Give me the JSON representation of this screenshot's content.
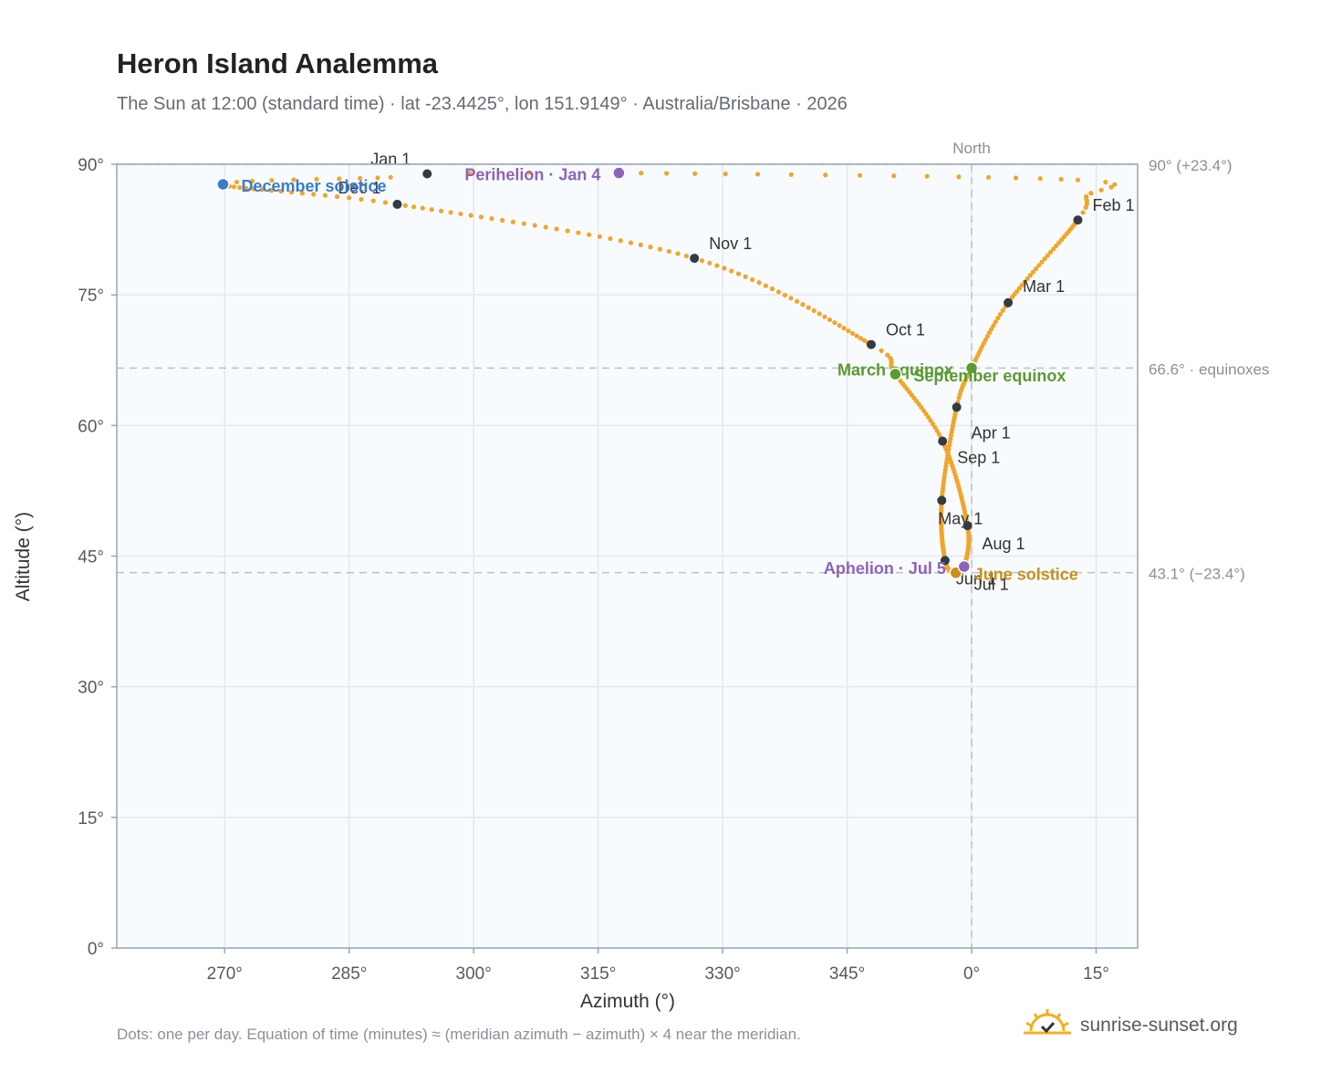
{
  "header": {
    "title": "Heron Island Analemma",
    "subtitle": "The Sun at 12:00 (standard time) · lat -23.4425°, lon 151.9149° · Australia/Brisbane · 2026"
  },
  "footer": {
    "note": "Dots: one per day. Equation of time (minutes) ≈ (meridian azimuth − azimuth) × 4 near the meridian.",
    "brand": "sunrise-sunset.org"
  },
  "colors": {
    "path": "#f0a62a",
    "month_marker": "#353b45",
    "december_solstice": "#3b7bc8",
    "june_solstice": "#c8901a",
    "equinox": "#5a9a32",
    "apsis": "#8e63b8",
    "plot_background": "#f8fbfd",
    "grid": "#e3e8ee",
    "reference_line": "#b7c4cc"
  },
  "chart_data": {
    "type": "scatter",
    "title": "Heron Island Analemma",
    "xlabel": "Azimuth (°)",
    "ylabel": "Altitude (°)",
    "xlim": [
      257,
      20
    ],
    "ylim": [
      0,
      90
    ],
    "x_ticks": [
      270,
      285,
      300,
      315,
      330,
      345,
      0,
      15
    ],
    "x_tick_labels": [
      "270°",
      "285°",
      "300°",
      "315°",
      "330°",
      "345°",
      "0°",
      "15°"
    ],
    "y_ticks": [
      0,
      15,
      30,
      45,
      60,
      75,
      90
    ],
    "y_tick_labels": [
      "0°",
      "15°",
      "30°",
      "45°",
      "60°",
      "75°",
      "90°"
    ],
    "grid": true,
    "reference_lines": [
      {
        "axis": "x",
        "value": 0,
        "label": "North"
      },
      {
        "axis": "y",
        "value": 90,
        "label": "90° (+23.4°)"
      },
      {
        "axis": "y",
        "value": 66.6,
        "label": "66.6° · equinoxes"
      },
      {
        "axis": "y",
        "value": 43.1,
        "label": "43.1° (−23.4°)"
      }
    ],
    "path_keypoints": [
      {
        "doy": 1,
        "az": 294.4,
        "alt": 88.9
      },
      {
        "doy": 4,
        "az": 317.5,
        "alt": 89.0
      },
      {
        "doy": 20,
        "az": 12.8,
        "alt": 88.2
      },
      {
        "doy": 26,
        "az": 13.8,
        "alt": 86.3
      },
      {
        "doy": 32,
        "az": 12.8,
        "alt": 83.6
      },
      {
        "doy": 60,
        "az": 4.4,
        "alt": 74.1
      },
      {
        "doy": 79,
        "az": 0.0,
        "alt": 66.6
      },
      {
        "doy": 91,
        "az": -1.8,
        "alt": 62.1
      },
      {
        "doy": 121,
        "az": -3.6,
        "alt": 51.4
      },
      {
        "doy": 152,
        "az": -3.2,
        "alt": 44.5
      },
      {
        "doy": 172,
        "az": -1.9,
        "alt": 43.1
      },
      {
        "doy": 186,
        "az": -0.9,
        "alt": 43.8
      },
      {
        "doy": 213,
        "az": -0.5,
        "alt": 48.5
      },
      {
        "doy": 244,
        "az": -3.5,
        "alt": 58.2
      },
      {
        "doy": 266,
        "az": 350.8,
        "alt": 65.9
      },
      {
        "doy": 274,
        "az": 347.9,
        "alt": 69.3
      },
      {
        "doy": 305,
        "az": 326.6,
        "alt": 79.2
      },
      {
        "doy": 335,
        "az": 290.8,
        "alt": 85.4
      },
      {
        "doy": 355,
        "az": 269.8,
        "alt": 87.7
      },
      {
        "doy": 365,
        "az": 290.0,
        "alt": 88.5
      }
    ],
    "month_markers": [
      {
        "label": "Jan 1",
        "az": 294.4,
        "alt": 88.9
      },
      {
        "label": "Feb 1",
        "az": 12.8,
        "alt": 83.6
      },
      {
        "label": "Mar 1",
        "az": 4.4,
        "alt": 74.1
      },
      {
        "label": "Apr 1",
        "az": -1.8,
        "alt": 62.1
      },
      {
        "label": "May 1",
        "az": -3.6,
        "alt": 51.4
      },
      {
        "label": "Jun 1",
        "az": -3.2,
        "alt": 44.5
      },
      {
        "label": "Jul 1",
        "az": -1.9,
        "alt": 43.2
      },
      {
        "label": "Aug 1",
        "az": -0.5,
        "alt": 48.5
      },
      {
        "label": "Sep 1",
        "az": -3.5,
        "alt": 58.2
      },
      {
        "label": "Oct 1",
        "az": 347.9,
        "alt": 69.3
      },
      {
        "label": "Nov 1",
        "az": 326.6,
        "alt": 79.2
      },
      {
        "label": "Dec 1",
        "az": 290.8,
        "alt": 85.4
      }
    ],
    "events": [
      {
        "label": "December solstice",
        "az": 269.8,
        "alt": 87.7,
        "kind": "december_solstice"
      },
      {
        "label": "Perihelion · Jan 4",
        "az": 317.5,
        "alt": 89.0,
        "kind": "apsis"
      },
      {
        "label": "March equinox",
        "az": 0.0,
        "alt": 66.6,
        "kind": "equinox"
      },
      {
        "label": "September equinox",
        "az": 350.8,
        "alt": 65.9,
        "kind": "equinox"
      },
      {
        "label": "June solstice",
        "az": -1.9,
        "alt": 43.1,
        "kind": "june_solstice"
      },
      {
        "label": "Aphelion · Jul 5",
        "az": -0.9,
        "alt": 43.8,
        "kind": "apsis"
      }
    ]
  }
}
